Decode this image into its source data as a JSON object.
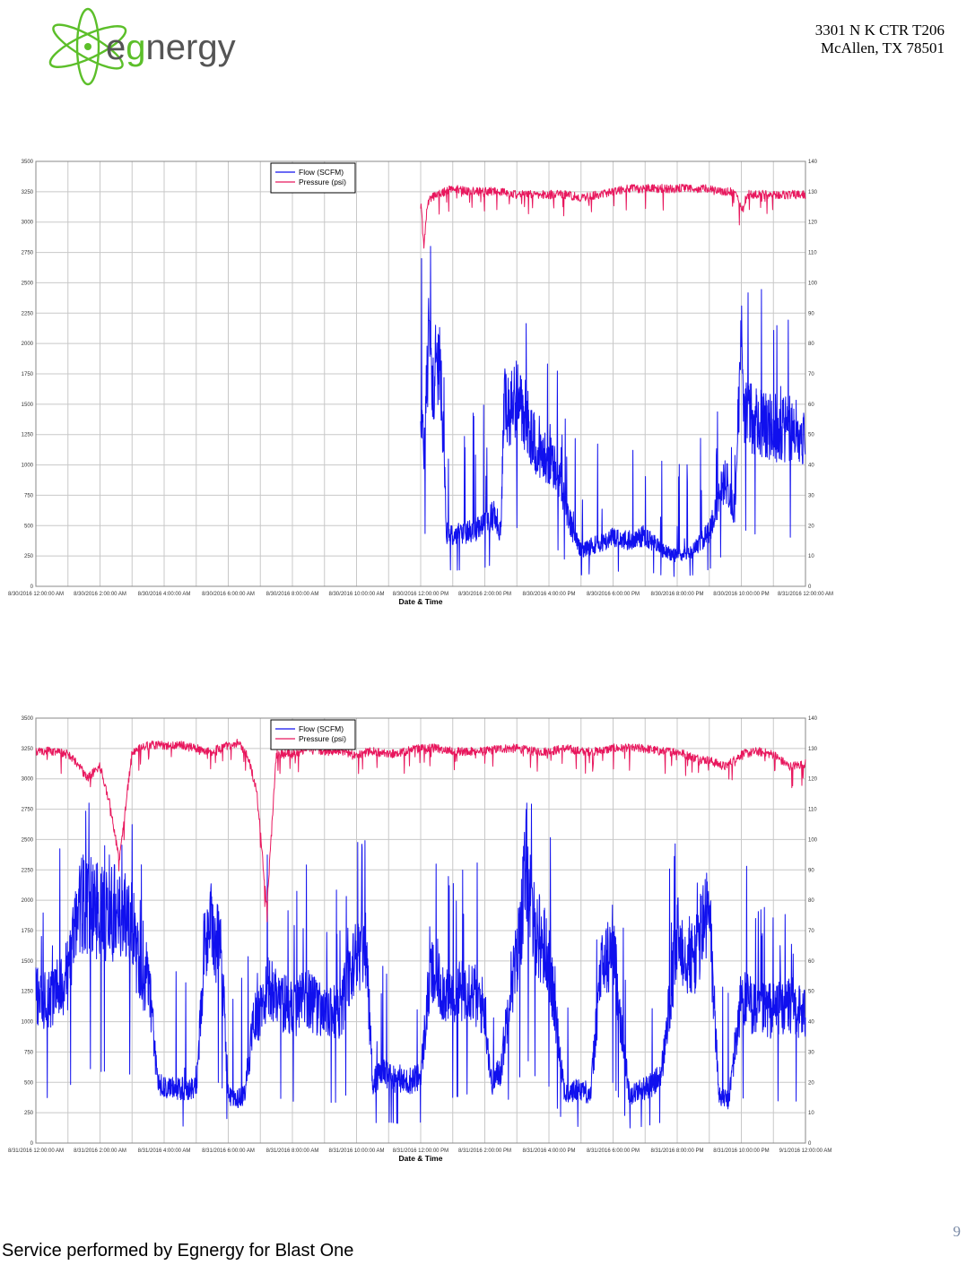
{
  "header": {
    "logo_text": "egnergy",
    "address_line1": "3301 N K CTR T206",
    "address_line2": "McAllen, TX 78501"
  },
  "colors": {
    "flow": "#1010ee",
    "pressure": "#e8175d",
    "grid": "#c8c8c8",
    "logo_green": "#5cbf2a",
    "logo_gray": "#555555"
  },
  "chart_data": [
    {
      "type": "line",
      "xlabel": "Date & Time",
      "x_ticks": [
        "8/30/2016 12:00:00 AM",
        "8/30/2016 2:00:00 AM",
        "8/30/2016 4:00:00 AM",
        "8/30/2016 6:00:00 AM",
        "8/30/2016 8:00:00 AM",
        "8/30/2016 10:00:00 AM",
        "8/30/2016 12:00:00 PM",
        "8/30/2016 2:00:00 PM",
        "8/30/2016 4:00:00 PM",
        "8/30/2016 6:00:00 PM",
        "8/30/2016 8:00:00 PM",
        "8/30/2016 10:00:00 PM",
        "8/31/2016 12:00:00 AM"
      ],
      "x_range_hours": [
        0,
        24
      ],
      "y_left_ticks": [
        "0",
        "250",
        "500",
        "750",
        "1000",
        "1250",
        "1500",
        "1750",
        "2000",
        "2250",
        "2500",
        "2750",
        "3000",
        "3250",
        "3500"
      ],
      "y_left_range": [
        0,
        3500
      ],
      "y_right_ticks": [
        "0",
        "10",
        "20",
        "30",
        "40",
        "50",
        "60",
        "70",
        "80",
        "90",
        "100",
        "110",
        "120",
        "130",
        "140"
      ],
      "y_right_range": [
        0,
        140
      ],
      "grid": true,
      "legend_position": "top-center",
      "series": [
        {
          "name": "Flow (SCFM)",
          "axis": "left",
          "x_hours": [
            12.0,
            12.1,
            12.2,
            12.4,
            12.5,
            12.6,
            12.7,
            12.8,
            13.0,
            13.5,
            14.0,
            14.3,
            14.5,
            14.6,
            14.8,
            15.0,
            15.3,
            15.5,
            15.8,
            16.0,
            16.3,
            16.5,
            16.8,
            17.0,
            17.5,
            18.0,
            18.5,
            19.0,
            19.5,
            20.0,
            20.5,
            21.0,
            21.5,
            21.8,
            22.0,
            22.1,
            22.3,
            22.6,
            23.0,
            23.5,
            24.0
          ],
          "values": [
            1650,
            1100,
            1900,
            1700,
            1650,
            1800,
            1300,
            450,
            420,
            450,
            500,
            600,
            450,
            1500,
            1450,
            1550,
            1400,
            1200,
            1100,
            1050,
            950,
            700,
            400,
            300,
            350,
            400,
            380,
            420,
            300,
            250,
            300,
            450,
            900,
            600,
            2100,
            1500,
            1400,
            1350,
            1300,
            1300,
            1250
          ]
        },
        {
          "name": "Pressure (psi)",
          "axis": "right",
          "x_hours": [
            12.0,
            12.1,
            12.2,
            12.3,
            12.5,
            13.0,
            13.5,
            14.0,
            14.5,
            15.0,
            15.5,
            16.0,
            16.5,
            17.0,
            17.5,
            18.0,
            18.5,
            19.0,
            19.5,
            20.0,
            20.5,
            21.0,
            21.5,
            21.8,
            22.0,
            22.2,
            22.5,
            23.0,
            23.5,
            24.0
          ],
          "values": [
            127,
            112,
            125,
            128,
            129,
            131,
            130,
            130,
            130,
            129,
            129,
            129,
            129,
            128,
            129,
            130,
            131,
            131,
            131,
            131,
            131,
            131,
            130,
            130,
            124,
            129,
            129,
            129,
            129,
            129
          ]
        }
      ]
    },
    {
      "type": "line",
      "xlabel": "Date & Time",
      "x_ticks": [
        "8/31/2016 12:00:00 AM",
        "8/31/2016 2:00:00 AM",
        "8/31/2016 4:00:00 AM",
        "8/31/2016 6:00:00 AM",
        "8/31/2016 8:00:00 AM",
        "8/31/2016 10:00:00 AM",
        "8/31/2016 12:00:00 PM",
        "8/31/2016 2:00:00 PM",
        "8/31/2016 4:00:00 PM",
        "8/31/2016 6:00:00 PM",
        "8/31/2016 8:00:00 PM",
        "8/31/2016 10:00:00 PM",
        "9/1/2016 12:00:00 AM"
      ],
      "x_range_hours": [
        0,
        24
      ],
      "y_left_ticks": [
        "0",
        "250",
        "500",
        "750",
        "1000",
        "1250",
        "1500",
        "1750",
        "2000",
        "2250",
        "2500",
        "2750",
        "3000",
        "3250",
        "3500"
      ],
      "y_left_range": [
        0,
        3500
      ],
      "y_right_ticks": [
        "0",
        "10",
        "20",
        "30",
        "40",
        "50",
        "60",
        "70",
        "80",
        "90",
        "100",
        "110",
        "120",
        "130",
        "140"
      ],
      "y_right_range": [
        0,
        140
      ],
      "grid": true,
      "legend_position": "top-center",
      "series": [
        {
          "name": "Flow (SCFM)",
          "axis": "left",
          "x_hours": [
            0.0,
            0.5,
            1.0,
            1.3,
            1.5,
            2.0,
            2.5,
            3.0,
            3.3,
            3.5,
            3.8,
            4.0,
            4.5,
            5.0,
            5.3,
            5.5,
            5.8,
            6.0,
            6.2,
            6.5,
            6.8,
            7.0,
            7.3,
            7.5,
            8.0,
            8.5,
            9.0,
            9.5,
            10.0,
            10.3,
            10.5,
            10.8,
            11.0,
            11.5,
            12.0,
            12.3,
            12.6,
            13.0,
            13.5,
            14.0,
            14.2,
            14.5,
            14.8,
            15.0,
            15.3,
            15.5,
            15.8,
            16.0,
            16.5,
            17.0,
            17.3,
            17.6,
            18.0,
            18.5,
            19.0,
            19.3,
            19.5,
            20.0,
            20.5,
            20.8,
            21.0,
            21.3,
            21.6,
            22.0,
            22.5,
            23.0,
            23.5,
            24.0
          ],
          "values": [
            1200,
            1200,
            1400,
            1900,
            2000,
            1900,
            1900,
            1800,
            1300,
            1400,
            500,
            450,
            450,
            450,
            1700,
            1800,
            1500,
            400,
            350,
            400,
            1000,
            1100,
            1300,
            1200,
            1100,
            1200,
            1050,
            1100,
            1600,
            1600,
            500,
            600,
            550,
            500,
            550,
            1400,
            1300,
            1200,
            1300,
            1100,
            500,
            600,
            1300,
            1500,
            2300,
            1800,
            1650,
            1500,
            400,
            450,
            400,
            1400,
            1600,
            400,
            450,
            500,
            550,
            1700,
            1500,
            1800,
            1900,
            400,
            350,
            1200,
            1100,
            1100,
            1150,
            1050
          ]
        },
        {
          "name": "Pressure (psi)",
          "axis": "right",
          "x_hours": [
            0.0,
            0.5,
            1.0,
            1.3,
            1.6,
            2.0,
            2.3,
            2.6,
            3.0,
            3.5,
            4.0,
            4.5,
            5.0,
            5.5,
            6.0,
            6.3,
            6.6,
            6.9,
            7.2,
            7.5,
            8.0,
            8.5,
            9.0,
            9.5,
            10.0,
            10.5,
            11.0,
            11.5,
            12.0,
            12.5,
            13.0,
            13.5,
            14.0,
            14.5,
            15.0,
            15.5,
            16.0,
            16.5,
            17.0,
            17.5,
            18.0,
            18.5,
            19.0,
            19.5,
            20.0,
            20.5,
            21.0,
            21.5,
            22.0,
            22.5,
            23.0,
            23.5,
            24.0
          ],
          "values": [
            129,
            129,
            128,
            125,
            120,
            124,
            112,
            93,
            129,
            131,
            131,
            131,
            130,
            129,
            131,
            132,
            128,
            115,
            77,
            128,
            128,
            130,
            129,
            129,
            128,
            129,
            128,
            129,
            130,
            130,
            129,
            129,
            129,
            130,
            130,
            129,
            129,
            130,
            129,
            129,
            130,
            130,
            130,
            129,
            129,
            127,
            126,
            124,
            128,
            129,
            128,
            124,
            125
          ]
        }
      ]
    }
  ],
  "footer": {
    "page_number": "9",
    "text": "Service performed by Egnergy for Blast One"
  }
}
